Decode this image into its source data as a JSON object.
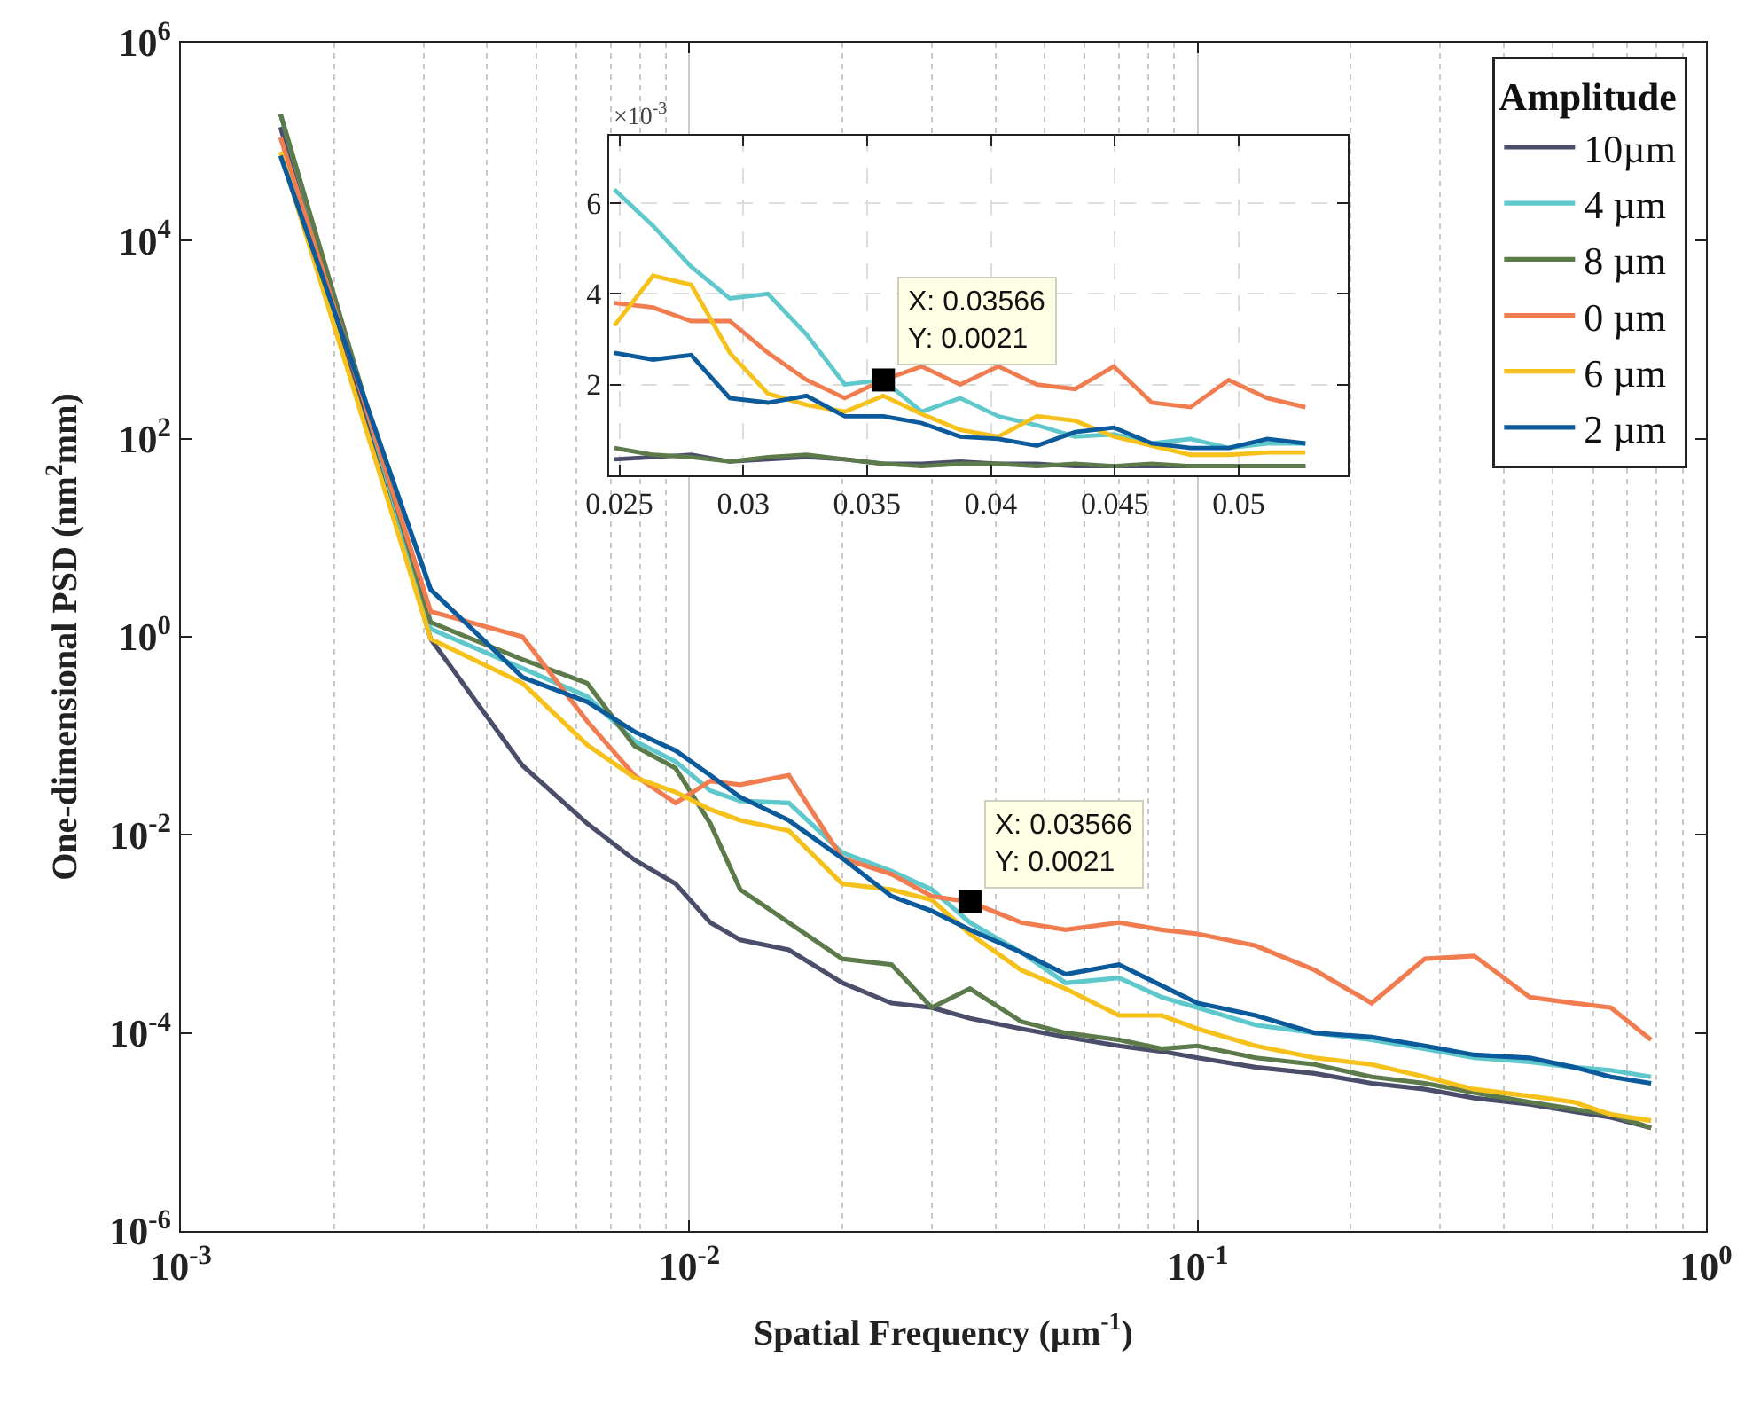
{
  "chart_data": [
    {
      "type": "line",
      "xlabel": "Spatial Frequency (µm$^{-1}$)",
      "ylabel": "One-dimensional PSD (nm$^{2}$mm)",
      "legend_title": "Amplitude",
      "legend": "top right",
      "grid": "x",
      "log": "xy",
      "marker": "none",
      "line_style": "solid",
      "x": [
        0.00157,
        0.0031,
        0.0047,
        0.0063,
        0.0078,
        0.0094,
        0.011,
        0.0126,
        0.0157,
        0.02,
        0.025,
        0.03,
        0.03566,
        0.045,
        0.055,
        0.07,
        0.085,
        0.1,
        0.13,
        0.17,
        0.22,
        0.28,
        0.35,
        0.45,
        0.55,
        0.65,
        0.78
      ],
      "xlim": [
        0.001,
        1
      ],
      "xticks": [
        {
          "value": 0.001,
          "label": "10$^{-3}$"
        },
        {
          "value": 0.01,
          "label": "10$^{-2}$"
        },
        {
          "value": 0.1,
          "label": "10$^{-1}$"
        },
        {
          "value": 1,
          "label": "10$^{0}$"
        }
      ],
      "ylim": [
        1e-06,
        1000000
      ],
      "yticks": [
        {
          "value": 1e-06,
          "label": "10$^{-6}$"
        },
        {
          "value": 0.0001,
          "label": "10$^{-4}$"
        },
        {
          "value": 0.01,
          "label": "10$^{-2}$"
        },
        {
          "value": 1,
          "label": "10$^{0}$"
        },
        {
          "value": 100,
          "label": "10$^{2}$"
        },
        {
          "value": 10000,
          "label": "10$^{4}$"
        },
        {
          "value": 1000000,
          "label": "10$^{6}$"
        }
      ],
      "series": [
        {
          "name": "10µm",
          "color": "#4a4e6b",
          "values": [
            140000,
            0.95,
            0.05,
            0.013,
            0.0056,
            0.0032,
            0.0013,
            0.00087,
            0.00069,
            0.00032,
            0.0002,
            0.00018,
            0.00014,
            0.00011,
            9.1e-05,
            7.4e-05,
            6.5e-05,
            5.6e-05,
            4.5e-05,
            3.9e-05,
            3.1e-05,
            2.7e-05,
            2.2e-05,
            1.9e-05,
            1.6e-05,
            1.4e-05,
            1.1e-05
          ]
        },
        {
          "name": "4 µm",
          "color": "#5ec8cc",
          "values": [
            190000,
            1.2,
            0.48,
            0.25,
            0.089,
            0.055,
            0.028,
            0.022,
            0.021,
            0.0066,
            0.0043,
            0.0028,
            0.0013,
            0.00065,
            0.00032,
            0.00036,
            0.00023,
            0.00018,
            0.00012,
            0.0001,
            8.5e-05,
            6.9e-05,
            5.6e-05,
            5.1e-05,
            4.5e-05,
            4.2e-05,
            3.6e-05
          ]
        },
        {
          "name": "8 µm",
          "color": "#5c7a4a",
          "values": [
            190000,
            1.4,
            0.59,
            0.34,
            0.079,
            0.047,
            0.013,
            0.0028,
            0.0013,
            0.00056,
            0.00049,
            0.00018,
            0.00028,
            0.00013,
            0.0001,
            8.5e-05,
            6.9e-05,
            7.4e-05,
            5.6e-05,
            4.8e-05,
            3.6e-05,
            3.1e-05,
            2.5e-05,
            2e-05,
            1.7e-05,
            1.5e-05,
            1.1e-05
          ]
        },
        {
          "name": "0 µm",
          "color": "#f07c50",
          "values": [
            110000,
            1.8,
            1.0,
            0.14,
            0.04,
            0.021,
            0.035,
            0.032,
            0.04,
            0.0058,
            0.004,
            0.0024,
            0.0021,
            0.0013,
            0.0011,
            0.0013,
            0.0011,
            0.001,
            0.00076,
            0.00043,
            0.0002,
            0.00056,
            0.0006,
            0.00023,
            0.0002,
            0.00018,
            8.5e-05
          ]
        },
        {
          "name": "6 µm",
          "color": "#f5c11a",
          "values": [
            79000,
            0.95,
            0.34,
            0.081,
            0.038,
            0.027,
            0.018,
            0.014,
            0.011,
            0.0032,
            0.0028,
            0.0022,
            0.001,
            0.00043,
            0.00028,
            0.00015,
            0.00015,
            0.00011,
            7.4e-05,
            5.6e-05,
            4.8e-05,
            3.6e-05,
            2.7e-05,
            2.3e-05,
            2e-05,
            1.5e-05,
            1.3e-05
          ]
        },
        {
          "name": "2 µm",
          "color": "#0a5a9c",
          "values": [
            72000,
            3.0,
            0.39,
            0.22,
            0.11,
            0.071,
            0.04,
            0.024,
            0.014,
            0.0058,
            0.0024,
            0.0017,
            0.0011,
            0.00065,
            0.00039,
            0.00049,
            0.0003,
            0.0002,
            0.00015,
            0.0001,
            9.1e-05,
            7.4e-05,
            6e-05,
            5.6e-05,
            4.5e-05,
            3.6e-05,
            3.1e-05
          ]
        }
      ],
      "annotations": [
        {
          "text": "X: 0.03566\nY: 0.0021",
          "x": 0.03566,
          "y": 0.0021
        }
      ]
    },
    {
      "type": "line",
      "grid": true,
      "marker": "none",
      "line_style": "solid",
      "x": [
        0.0248,
        0.02636,
        0.0279,
        0.02946,
        0.031,
        0.03256,
        0.0341,
        0.03566,
        0.0372,
        0.03876,
        0.0403,
        0.04186,
        0.0434,
        0.04496,
        0.0465,
        0.04806,
        0.0496,
        0.05116,
        0.0527
      ],
      "xlim": [
        0.0246,
        0.0544
      ],
      "xticks": [
        0.025,
        0.03,
        0.035,
        0.04,
        0.045,
        0.05
      ],
      "ylim": [
        0,
        7.5
      ],
      "yticks": [
        2,
        4,
        6
      ],
      "series": [
        {
          "color": "#4a4e6b",
          "values": [
            0.35,
            0.4,
            0.45,
            0.3,
            0.35,
            0.4,
            0.35,
            0.25,
            0.25,
            0.3,
            0.25,
            0.25,
            0.2,
            0.2,
            0.2,
            0.2,
            0.2,
            0.2,
            0.2
          ]
        },
        {
          "color": "#5ec8cc",
          "values": [
            6.3,
            5.5,
            4.6,
            3.9,
            4.0,
            3.1,
            2.0,
            2.1,
            1.4,
            1.7,
            1.3,
            1.1,
            0.85,
            0.9,
            0.7,
            0.8,
            0.6,
            0.7,
            0.7
          ]
        },
        {
          "color": "#5c7a4a",
          "values": [
            0.6,
            0.45,
            0.4,
            0.3,
            0.4,
            0.45,
            0.35,
            0.25,
            0.2,
            0.25,
            0.25,
            0.2,
            0.25,
            0.2,
            0.25,
            0.2,
            0.2,
            0.2,
            0.2
          ]
        },
        {
          "color": "#f07c50",
          "values": [
            3.8,
            3.7,
            3.4,
            3.4,
            2.7,
            2.1,
            1.7,
            2.1,
            2.4,
            2.0,
            2.4,
            2.0,
            1.9,
            2.4,
            1.6,
            1.5,
            2.1,
            1.7,
            1.5
          ]
        },
        {
          "color": "#f5c11a",
          "values": [
            3.3,
            4.4,
            4.2,
            2.7,
            1.8,
            1.55,
            1.4,
            1.75,
            1.35,
            1.0,
            0.85,
            1.3,
            1.2,
            0.85,
            0.65,
            0.45,
            0.45,
            0.5,
            0.5
          ]
        },
        {
          "color": "#0a5a9c",
          "values": [
            2.7,
            2.55,
            2.65,
            1.7,
            1.6,
            1.75,
            1.3,
            1.3,
            1.15,
            0.85,
            0.8,
            0.65,
            0.95,
            1.05,
            0.7,
            0.6,
            0.6,
            0.8,
            0.7
          ]
        }
      ],
      "annotations": [
        "×10$^{-3}$",
        {
          "text": "X: 0.03566\nY: 0.0021",
          "x": 0.03566,
          "y": 2.1
        }
      ]
    }
  ]
}
